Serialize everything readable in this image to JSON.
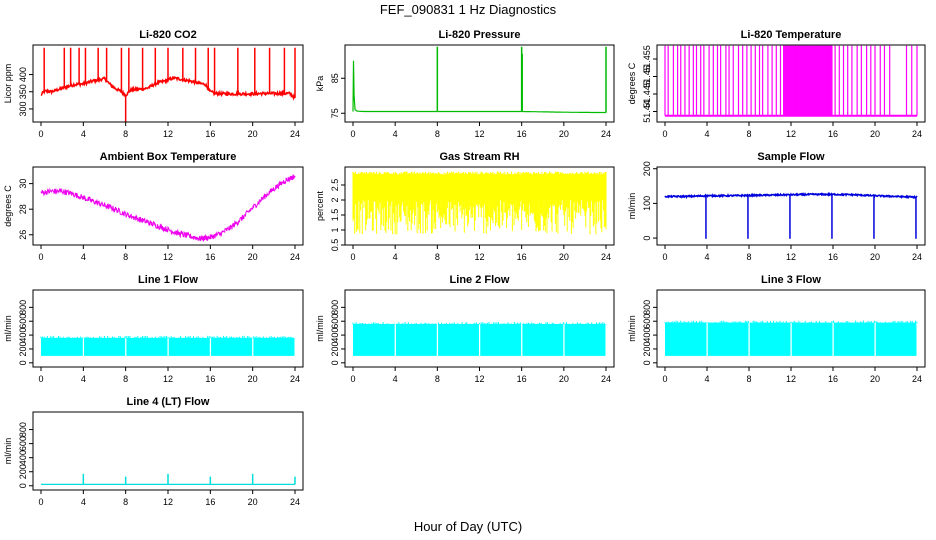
{
  "figure": {
    "title": "FEF_090831  1 Hz Diagnostics",
    "xlabel": "Hour of Day (UTC)"
  },
  "chart_data": [
    {
      "type": "line",
      "title": "Li-820 CO2",
      "ylabel": "Licor ppm",
      "color": "#ff0000",
      "xlim": [
        0,
        24
      ],
      "ylim": [
        262,
        486
      ],
      "xticks": [
        0,
        4,
        8,
        12,
        16,
        20,
        24
      ],
      "yticks": [
        300,
        350,
        400
      ],
      "series": [
        {
          "x": [
            0,
            0.25,
            0.5,
            1,
            1.5,
            2,
            2.5,
            3,
            3.5,
            4,
            4.5,
            5,
            5.5,
            6,
            6.5,
            7,
            7.5,
            8,
            8.5,
            9,
            9.5,
            10,
            10.5,
            11,
            11.5,
            12,
            12.5,
            13,
            13.5,
            14,
            14.5,
            15,
            15.5,
            16,
            16.5,
            17,
            18,
            19,
            20,
            21,
            22,
            23,
            23.5,
            24
          ],
          "values": [
            340,
            350,
            352,
            350,
            355,
            360,
            365,
            370,
            372,
            373,
            378,
            382,
            385,
            388,
            372,
            360,
            352,
            340,
            355,
            357,
            358,
            360,
            368,
            376,
            380,
            384,
            390,
            388,
            384,
            382,
            378,
            374,
            372,
            350,
            345,
            344,
            344,
            344,
            344,
            345,
            345,
            345,
            345,
            332
          ]
        },
        {
          "name": "spikes",
          "x": [
            0.3,
            2.2,
            2.8,
            3.6,
            4.2,
            5.4,
            6.2,
            7.6,
            8.0,
            8.3,
            9.6,
            10.8,
            12.0,
            13.4,
            14.6,
            15.8,
            16.4,
            18.6,
            20.2,
            21.6,
            23.0,
            24.0
          ],
          "values": [
            478,
            478,
            478,
            478,
            478,
            478,
            478,
            478,
            262,
            478,
            478,
            478,
            478,
            478,
            478,
            478,
            478,
            478,
            478,
            478,
            478,
            478
          ]
        }
      ]
    },
    {
      "type": "line",
      "title": "Li-820 Pressure",
      "ylabel": "kPa",
      "color": "#00bb00",
      "xlim": [
        0,
        24
      ],
      "ylim": [
        72.5,
        94.5
      ],
      "xticks": [
        0,
        4,
        8,
        12,
        16,
        20,
        24
      ],
      "yticks": [
        75,
        85
      ],
      "series": [
        {
          "x": [
            0,
            0.05,
            0.1,
            0.2,
            0.4,
            1,
            4,
            8,
            12,
            16,
            20,
            23.5,
            24
          ],
          "values": [
            75.5,
            90.0,
            80.0,
            76.0,
            75.6,
            75.5,
            75.5,
            75.5,
            75.5,
            75.5,
            75.3,
            75.2,
            75.2
          ]
        },
        {
          "name": "spikes",
          "x": [
            0.05,
            8.0,
            16.0,
            16.05,
            24.0
          ],
          "values": [
            90.0,
            94.0,
            94.0,
            92.0,
            94.0
          ]
        }
      ]
    },
    {
      "type": "line",
      "title": "Li-820 Temperature",
      "ylabel": "degrees C",
      "color": "#ff00ff",
      "xlim": [
        0,
        24
      ],
      "ylim": [
        51.437,
        51.459
      ],
      "xticks": [
        0,
        4,
        8,
        12,
        16,
        20,
        24
      ],
      "yticks": [
        51.44,
        51.445,
        51.45,
        51.455
      ],
      "baseline": 51.4388,
      "top": 51.4588,
      "series": [
        {
          "name": "switching",
          "x": [
            0.0,
            0.3,
            0.8,
            1.2,
            1.5,
            1.9,
            2.3,
            2.7,
            3.0,
            3.4,
            3.7,
            4.2,
            4.6,
            5.0,
            5.3,
            5.8,
            6.1,
            6.5,
            7.0,
            7.4,
            7.8,
            8.2,
            8.6,
            9.0,
            9.3,
            9.8,
            10.2,
            10.6,
            11.0,
            11.3,
            15.9,
            16.2,
            16.6,
            17.0,
            17.4,
            17.8,
            18.3,
            18.7,
            19.2,
            19.6,
            20.0,
            20.5,
            20.9,
            21.4,
            23.0,
            23.5,
            24.0
          ],
          "values": [
            51.4588,
            51.4588,
            51.4588,
            51.4588,
            51.4588,
            51.4588,
            51.4588,
            51.4588,
            51.4588,
            51.4588,
            51.4588,
            51.4588,
            51.4588,
            51.4588,
            51.4588,
            51.4588,
            51.4588,
            51.4588,
            51.4588,
            51.4588,
            51.4588,
            51.4588,
            51.4588,
            51.4588,
            51.4588,
            51.4588,
            51.4588,
            51.4588,
            51.4588,
            51.4588,
            51.4588,
            51.4588,
            51.4588,
            51.4588,
            51.4588,
            51.4588,
            51.4588,
            51.4588,
            51.4588,
            51.4588,
            51.4588,
            51.4588,
            51.4588,
            51.4588,
            51.4588,
            51.4588,
            51.4588
          ]
        },
        {
          "name": "dense-band",
          "x": [
            11.3,
            15.9
          ],
          "values": [
            51.4588,
            51.4588
          ]
        }
      ]
    },
    {
      "type": "line",
      "title": "Ambient Box Temperature",
      "ylabel": "degrees C",
      "color": "#ee00ee",
      "xlim": [
        0,
        24
      ],
      "ylim": [
        25.2,
        31.3
      ],
      "xticks": [
        0,
        4,
        8,
        12,
        16,
        20,
        24
      ],
      "yticks": [
        26,
        28,
        30
      ],
      "noise": 0.45,
      "series": [
        {
          "x": [
            0,
            1,
            2,
            3,
            4,
            5,
            6,
            7,
            8,
            9,
            10,
            11,
            12,
            13,
            14,
            15,
            16,
            17,
            18,
            19,
            20,
            21,
            22,
            23,
            24
          ],
          "values": [
            29.3,
            29.4,
            29.4,
            29.2,
            28.9,
            28.6,
            28.3,
            28.0,
            27.6,
            27.3,
            27.0,
            26.7,
            26.4,
            26.1,
            25.9,
            25.7,
            25.8,
            26.1,
            26.6,
            27.3,
            28.1,
            28.9,
            29.6,
            30.2,
            30.6
          ]
        }
      ]
    },
    {
      "type": "line",
      "title": "Gas Stream RH",
      "ylabel": "percent",
      "color": "#ffff00",
      "xlim": [
        0,
        24
      ],
      "ylim": [
        0.5,
        3.1
      ],
      "xticks": [
        0,
        4,
        8,
        12,
        16,
        20,
        24
      ],
      "yticks": [
        0.5,
        1.0,
        1.5,
        2.0,
        2.5
      ],
      "band": {
        "upper": 2.85,
        "lower": 0.85,
        "mid_lower": 2.0
      },
      "series": [
        {
          "x": [
            0,
            4,
            8,
            12,
            16,
            20,
            24
          ],
          "values": [
            2.8,
            2.8,
            2.8,
            2.8,
            2.8,
            2.8,
            2.8
          ]
        }
      ]
    },
    {
      "type": "line",
      "title": "Sample Flow",
      "ylabel": "ml/min",
      "color": "#0000dd",
      "xlim": [
        0,
        24
      ],
      "ylim": [
        -20,
        205
      ],
      "xticks": [
        0,
        4,
        8,
        12,
        16,
        20,
        24
      ],
      "yticks": [
        0,
        100,
        200
      ],
      "series": [
        {
          "x": [
            0,
            2,
            4,
            6,
            8,
            10,
            12,
            14,
            16,
            18,
            20,
            22,
            24
          ],
          "values": [
            120,
            120,
            122,
            122,
            123,
            124,
            125,
            126,
            126,
            125,
            122,
            120,
            118
          ]
        },
        {
          "name": "dips",
          "x": [
            3.9,
            7.9,
            11.9,
            15.9,
            19.9,
            23.9
          ],
          "values": [
            -2,
            -2,
            -2,
            -2,
            -2,
            -2
          ]
        }
      ]
    },
    {
      "type": "area",
      "title": "Line 1 Flow",
      "ylabel": "ml/min",
      "color": "#00ffff",
      "xlim": [
        0,
        24
      ],
      "ylim": [
        -60,
        1050
      ],
      "xticks": [
        0,
        4,
        8,
        12,
        16,
        20,
        24
      ],
      "yticks": [
        0,
        200,
        400,
        600,
        800
      ],
      "band": {
        "upper": 360,
        "lower": 100
      },
      "gaps": [
        3.95,
        7.95,
        11.95,
        15.95,
        19.95,
        23.95
      ],
      "series": [
        {
          "x": [
            0,
            24
          ],
          "values": [
            360,
            360
          ]
        }
      ]
    },
    {
      "type": "area",
      "title": "Line 2 Flow",
      "ylabel": "ml/min",
      "color": "#00ffff",
      "xlim": [
        0,
        24
      ],
      "ylim": [
        -60,
        1050
      ],
      "xticks": [
        0,
        4,
        8,
        12,
        16,
        20,
        24
      ],
      "yticks": [
        0,
        200,
        400,
        600,
        800
      ],
      "band": {
        "upper": 560,
        "lower": 100
      },
      "gaps": [
        3.95,
        7.95,
        11.95,
        15.95,
        19.95,
        23.95
      ],
      "series": [
        {
          "x": [
            0,
            24
          ],
          "values": [
            560,
            560
          ]
        }
      ]
    },
    {
      "type": "area",
      "title": "Line 3 Flow",
      "ylabel": "ml/min",
      "color": "#00ffff",
      "xlim": [
        0,
        24
      ],
      "ylim": [
        -60,
        1050
      ],
      "xticks": [
        0,
        4,
        8,
        12,
        16,
        20,
        24
      ],
      "yticks": [
        0,
        200,
        400,
        600,
        800
      ],
      "band": {
        "upper": 580,
        "lower": 100
      },
      "gaps": [
        3.95,
        7.95,
        11.95,
        15.95,
        19.95,
        23.95
      ],
      "series": [
        {
          "x": [
            0,
            24
          ],
          "values": [
            580,
            580
          ]
        }
      ]
    },
    {
      "type": "line",
      "title": "Line 4 (LT) Flow",
      "ylabel": "ml/min",
      "color": "#00dddd",
      "xlim": [
        0,
        24
      ],
      "ylim": [
        -60,
        1050
      ],
      "xticks": [
        0,
        4,
        8,
        12,
        16,
        20,
        24
      ],
      "yticks": [
        0,
        200,
        400,
        600,
        800
      ],
      "series": [
        {
          "x": [
            0,
            24
          ],
          "values": [
            20,
            20
          ]
        },
        {
          "name": "spikes",
          "x": [
            4.0,
            8.0,
            12.0,
            16.0,
            20.0,
            24.0
          ],
          "values": [
            170,
            130,
            170,
            130,
            170,
            130
          ]
        }
      ]
    }
  ]
}
